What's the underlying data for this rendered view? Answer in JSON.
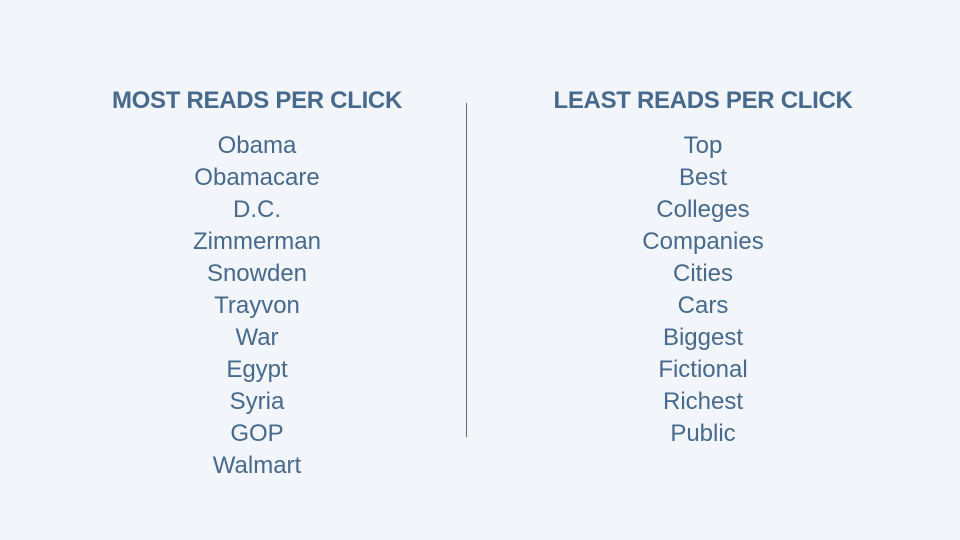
{
  "left_column": {
    "heading": "MOST READS PER CLICK",
    "items": [
      "Obama",
      "Obamacare",
      "D.C.",
      "Zimmerman",
      "Snowden",
      "Trayvon",
      "War",
      "Egypt",
      "Syria",
      "GOP",
      "Walmart"
    ]
  },
  "right_column": {
    "heading": "LEAST READS PER CLICK",
    "items": [
      "Top",
      "Best",
      "Colleges",
      "Companies",
      "Cities",
      "Cars",
      "Biggest",
      "Fictional",
      "Richest",
      "Public"
    ]
  },
  "colors": {
    "background": "#f2f6fa",
    "text": "#46698c",
    "divider": "#5a6e80"
  }
}
